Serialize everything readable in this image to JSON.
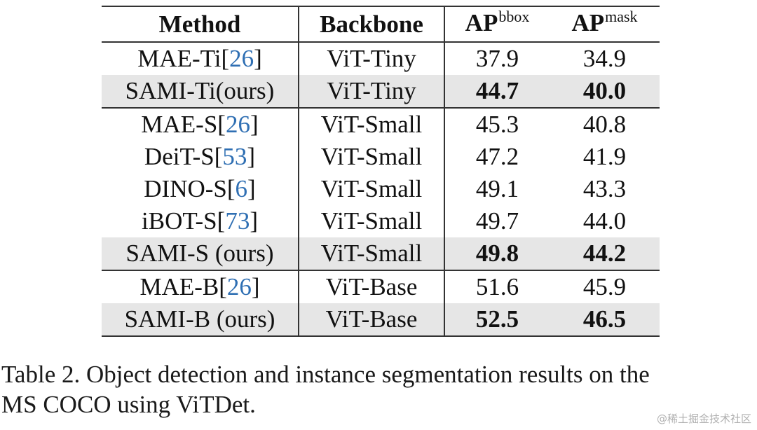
{
  "table": {
    "headers": {
      "method": "Method",
      "backbone": "Backbone",
      "ap": "AP",
      "bbox_sup": "bbox",
      "mask_sup": "mask"
    },
    "rows": [
      {
        "method": "MAE-Ti",
        "cite": "26",
        "backbone": "ViT-Tiny",
        "ap_bbox": "37.9",
        "ap_mask": "34.9",
        "highlight": false
      },
      {
        "method": "SAMI-Ti(ours)",
        "cite": "",
        "backbone": "ViT-Tiny",
        "ap_bbox": "44.7",
        "ap_mask": "40.0",
        "highlight": true
      },
      {
        "method": "MAE-S",
        "cite": "26",
        "backbone": "ViT-Small",
        "ap_bbox": "45.3",
        "ap_mask": "40.8",
        "highlight": false
      },
      {
        "method": "DeiT-S",
        "cite": "53",
        "backbone": "ViT-Small",
        "ap_bbox": "47.2",
        "ap_mask": "41.9",
        "highlight": false
      },
      {
        "method": "DINO-S",
        "cite": "6",
        "backbone": "ViT-Small",
        "ap_bbox": "49.1",
        "ap_mask": "43.3",
        "highlight": false
      },
      {
        "method": "iBOT-S",
        "cite": "73",
        "backbone": "ViT-Small",
        "ap_bbox": "49.7",
        "ap_mask": "44.0",
        "highlight": false
      },
      {
        "method": "SAMI-S (ours)",
        "cite": "",
        "backbone": "ViT-Small",
        "ap_bbox": "49.8",
        "ap_mask": "44.2",
        "highlight": true
      },
      {
        "method": "MAE-B",
        "cite": "26",
        "backbone": "ViT-Base",
        "ap_bbox": "51.6",
        "ap_mask": "45.9",
        "highlight": false
      },
      {
        "method": "SAMI-B (ours)",
        "cite": "",
        "backbone": "ViT-Base",
        "ap_bbox": "52.5",
        "ap_mask": "46.5",
        "highlight": true
      }
    ]
  },
  "caption": {
    "line1": "Table 2. Object detection and instance segmentation results on the",
    "line2": "MS COCO using ViTDet."
  },
  "watermark": "@稀土掘金技术社区",
  "colors": {
    "citation": "#2f6fb3",
    "highlight_row": "#e6e6e6"
  }
}
